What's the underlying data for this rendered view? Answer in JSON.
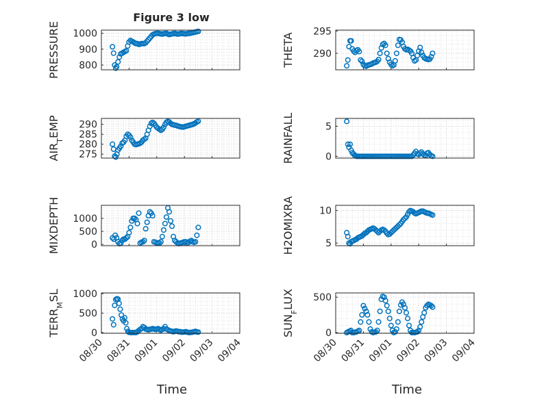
{
  "figure": {
    "title": "Figure 3 low",
    "xlabel": "Time"
  },
  "chart_data": [
    {
      "type": "scatter",
      "ylabel": "PRESSURE",
      "title": "Figure 3 low",
      "xlim": [
        0,
        5
      ],
      "ylim": [
        770,
        1020
      ],
      "yticks": [
        800,
        900,
        1000
      ],
      "xtick_labels": [
        "08/30",
        "08/31",
        "09/01",
        "09/02",
        "09/03",
        "09/04"
      ],
      "x": [
        0.4,
        0.44,
        0.48,
        0.52,
        0.55,
        0.6,
        0.65,
        0.7,
        0.75,
        0.8,
        0.85,
        0.9,
        0.95,
        1.0,
        1.05,
        1.1,
        1.15,
        1.2,
        1.25,
        1.3,
        1.35,
        1.4,
        1.45,
        1.5,
        1.55,
        1.6,
        1.65,
        1.7,
        1.75,
        1.8,
        1.85,
        1.9,
        1.95,
        2.0,
        2.05,
        2.1,
        2.15,
        2.2,
        2.25,
        2.3,
        2.35,
        2.4,
        2.45,
        2.5,
        2.55,
        2.6,
        2.65,
        2.7,
        2.75,
        2.8,
        2.85,
        2.9,
        2.95,
        3.0,
        3.05,
        3.1,
        3.15,
        3.2,
        3.25,
        3.3,
        3.35,
        3.4,
        3.45,
        3.5
      ],
      "y": [
        915,
        875,
        800,
        780,
        790,
        820,
        850,
        870,
        875,
        880,
        885,
        890,
        920,
        945,
        955,
        950,
        945,
        940,
        935,
        935,
        930,
        932,
        935,
        935,
        935,
        940,
        950,
        960,
        970,
        980,
        990,
        995,
        998,
        1000,
        1000,
        998,
        996,
        995,
        997,
        999,
        1000,
        995,
        992,
        994,
        996,
        998,
        1000,
        997,
        995,
        996,
        998,
        1000,
        998,
        997,
        996,
        998,
        1000,
        1000,
        1002,
        1004,
        1006,
        1008,
        1010,
        1012
      ]
    },
    {
      "type": "scatter",
      "ylabel": "THETA",
      "xlim": [
        0,
        5
      ],
      "ylim": [
        286.3,
        295.2
      ],
      "yticks": [
        290,
        295
      ],
      "xtick_labels": [
        "08/30",
        "08/31",
        "09/01",
        "09/02",
        "09/03",
        "09/04"
      ],
      "x": [
        0.4,
        0.44,
        0.48,
        0.52,
        0.56,
        0.6,
        0.65,
        0.7,
        0.75,
        0.8,
        0.85,
        0.9,
        0.95,
        1.0,
        1.05,
        1.1,
        1.15,
        1.2,
        1.25,
        1.3,
        1.35,
        1.4,
        1.45,
        1.5,
        1.55,
        1.6,
        1.65,
        1.7,
        1.75,
        1.8,
        1.85,
        1.9,
        1.95,
        2.0,
        2.05,
        2.1,
        2.15,
        2.2,
        2.25,
        2.3,
        2.35,
        2.4,
        2.45,
        2.5,
        2.55,
        2.6,
        2.65,
        2.7,
        2.75,
        2.8,
        2.85,
        2.9,
        2.95,
        3.0,
        3.05,
        3.1,
        3.15,
        3.2,
        3.25,
        3.3,
        3.35,
        3.4,
        3.45,
        3.5
      ],
      "y": [
        287.2,
        288.5,
        291.5,
        292.8,
        292.8,
        291,
        290.5,
        290.2,
        290.6,
        290.8,
        290.4,
        288.5,
        288.2,
        287.5,
        287.2,
        287.1,
        287.3,
        287.4,
        287.5,
        287.6,
        287.8,
        287.9,
        288,
        288.2,
        288.6,
        290,
        291.2,
        292,
        292.2,
        291.8,
        290,
        288.8,
        288,
        287.5,
        287.2,
        287.4,
        288.3,
        290,
        291.8,
        293.1,
        293,
        292.5,
        291.5,
        291,
        290.8,
        290.9,
        290.7,
        290.5,
        290,
        289,
        288.3,
        288.5,
        289.5,
        290.5,
        291.3,
        290.2,
        289.5,
        289,
        288.8,
        288.7,
        288.6,
        288.7,
        289.2,
        290
      ]
    },
    {
      "type": "scatter",
      "ylabel": "AIR_TEMP",
      "xlim": [
        0,
        5
      ],
      "ylim": [
        273,
        293
      ],
      "yticks": [
        275,
        280,
        285,
        290
      ],
      "xtick_labels": [
        "08/30",
        "08/31",
        "09/01",
        "09/02",
        "09/03",
        "09/04"
      ],
      "x": [
        0.4,
        0.44,
        0.48,
        0.52,
        0.56,
        0.6,
        0.65,
        0.7,
        0.75,
        0.8,
        0.85,
        0.9,
        0.95,
        1.0,
        1.05,
        1.1,
        1.15,
        1.2,
        1.25,
        1.3,
        1.35,
        1.4,
        1.45,
        1.5,
        1.55,
        1.6,
        1.65,
        1.7,
        1.75,
        1.8,
        1.85,
        1.9,
        1.95,
        2.0,
        2.05,
        2.1,
        2.15,
        2.2,
        2.25,
        2.3,
        2.35,
        2.4,
        2.45,
        2.5,
        2.55,
        2.6,
        2.65,
        2.7,
        2.75,
        2.8,
        2.85,
        2.9,
        2.95,
        3.0,
        3.05,
        3.1,
        3.15,
        3.2,
        3.25,
        3.3,
        3.35,
        3.4,
        3.45,
        3.5
      ],
      "y": [
        280,
        277.5,
        274,
        273.5,
        275,
        277,
        278,
        279,
        280.5,
        281,
        282,
        284,
        285,
        284.5,
        283.5,
        282,
        281,
        280,
        279.8,
        280,
        280.2,
        280.5,
        281,
        282,
        282.5,
        283,
        285,
        287,
        289,
        290.5,
        291,
        290.5,
        289.5,
        288.5,
        288,
        287.5,
        287,
        287.5,
        288.5,
        290,
        291,
        291.5,
        291.2,
        290.5,
        290,
        289.8,
        289.6,
        289.5,
        289.2,
        289,
        288.8,
        288.7,
        288.6,
        288.8,
        289,
        289.2,
        289.4,
        289.6,
        289.8,
        290,
        290.3,
        290.7,
        291.2,
        291.6
      ]
    },
    {
      "type": "scatter",
      "ylabel": "RAINFALL",
      "xlim": [
        0,
        5
      ],
      "ylim": [
        -0.3,
        6.3
      ],
      "yticks": [
        0,
        5
      ],
      "xtick_labels": [
        "08/30",
        "08/31",
        "09/01",
        "09/02",
        "09/03",
        "09/04"
      ],
      "x": [
        0.4,
        0.44,
        0.48,
        0.52,
        0.56,
        0.6,
        0.64,
        0.68,
        0.72,
        0.76,
        0.8,
        0.85,
        0.9,
        0.95,
        1.0,
        1.05,
        1.1,
        1.15,
        1.2,
        1.25,
        1.3,
        1.35,
        1.4,
        1.45,
        1.5,
        1.55,
        1.6,
        1.65,
        1.7,
        1.75,
        1.8,
        1.85,
        1.9,
        1.95,
        2.0,
        2.05,
        2.1,
        2.15,
        2.2,
        2.25,
        2.3,
        2.35,
        2.4,
        2.45,
        2.5,
        2.55,
        2.6,
        2.65,
        2.7,
        2.75,
        2.8,
        2.85,
        2.9,
        2.95,
        3.0,
        3.05,
        3.1,
        3.15,
        3.2,
        3.25,
        3.3,
        3.35,
        3.4,
        3.45,
        3.5
      ],
      "y": [
        5.8,
        2,
        1.5,
        2,
        1,
        0.6,
        0.4,
        0.2,
        0.1,
        0,
        0,
        0,
        0,
        0,
        0,
        0,
        0,
        0,
        0,
        0,
        0,
        0,
        0,
        0,
        0,
        0,
        0,
        0,
        0,
        0,
        0,
        0,
        0,
        0,
        0,
        0,
        0,
        0,
        0,
        0,
        0,
        0,
        0,
        0,
        0,
        0,
        0,
        0,
        0,
        0,
        0.2,
        0.5,
        0.8,
        0.4,
        0.3,
        0.5,
        0.7,
        0.4,
        0.2,
        0.1,
        0.5,
        0.6,
        0.3,
        0.1,
        0
      ]
    },
    {
      "type": "scatter",
      "ylabel": "MIXDEPTH",
      "xlim": [
        0,
        5
      ],
      "ylim": [
        -50,
        1500
      ],
      "yticks": [
        0,
        500,
        1000
      ],
      "xtick_labels": [
        "08/30",
        "08/31",
        "09/01",
        "09/02",
        "09/03",
        "09/04"
      ],
      "x": [
        0.4,
        0.45,
        0.5,
        0.55,
        0.6,
        0.65,
        0.7,
        0.75,
        0.8,
        0.85,
        0.9,
        0.95,
        1.0,
        1.05,
        1.1,
        1.15,
        1.2,
        1.25,
        1.3,
        1.35,
        1.4,
        1.45,
        1.5,
        1.55,
        1.6,
        1.65,
        1.7,
        1.75,
        1.8,
        1.85,
        1.9,
        1.95,
        2.0,
        2.05,
        2.1,
        2.15,
        2.2,
        2.25,
        2.3,
        2.35,
        2.4,
        2.45,
        2.5,
        2.55,
        2.6,
        2.65,
        2.7,
        2.75,
        2.8,
        2.85,
        2.9,
        2.95,
        3.0,
        3.05,
        3.1,
        3.15,
        3.2,
        3.25,
        3.3,
        3.35,
        3.4,
        3.45,
        3.5
      ],
      "y": [
        250,
        200,
        350,
        250,
        100,
        30,
        50,
        150,
        200,
        200,
        250,
        300,
        450,
        650,
        900,
        1000,
        1000,
        950,
        800,
        1200,
        50,
        80,
        100,
        150,
        600,
        850,
        1100,
        1250,
        1200,
        1100,
        100,
        80,
        50,
        60,
        50,
        100,
        300,
        550,
        800,
        1050,
        1400,
        1250,
        900,
        700,
        300,
        150,
        100,
        50,
        30,
        50,
        60,
        80,
        100,
        100,
        50,
        80,
        120,
        150,
        100,
        80,
        100,
        350,
        650
      ]
    },
    {
      "type": "scatter",
      "ylabel": "H2OMIXRA",
      "xlim": [
        0,
        5
      ],
      "ylim": [
        4.6,
        10.8
      ],
      "yticks": [
        5,
        10
      ],
      "xtick_labels": [
        "08/30",
        "08/31",
        "09/01",
        "09/02",
        "09/03",
        "09/04"
      ],
      "x": [
        0.4,
        0.44,
        0.48,
        0.52,
        0.56,
        0.6,
        0.65,
        0.7,
        0.75,
        0.8,
        0.85,
        0.9,
        0.95,
        1.0,
        1.05,
        1.1,
        1.15,
        1.2,
        1.25,
        1.3,
        1.35,
        1.4,
        1.45,
        1.5,
        1.55,
        1.6,
        1.65,
        1.7,
        1.75,
        1.8,
        1.85,
        1.9,
        1.95,
        2.0,
        2.05,
        2.1,
        2.15,
        2.2,
        2.25,
        2.3,
        2.35,
        2.4,
        2.45,
        2.5,
        2.55,
        2.6,
        2.65,
        2.7,
        2.75,
        2.8,
        2.85,
        2.9,
        2.95,
        3.0,
        3.05,
        3.1,
        3.15,
        3.2,
        3.25,
        3.3,
        3.35,
        3.4,
        3.45,
        3.5
      ],
      "y": [
        6.6,
        6,
        5,
        4.9,
        5.2,
        5.3,
        5.4,
        5.5,
        5.6,
        5.8,
        5.9,
        6,
        6.1,
        6.3,
        6.5,
        6.6,
        6.8,
        7,
        7.1,
        7.2,
        7.3,
        7.2,
        7,
        6.8,
        6.6,
        6.8,
        7,
        7.1,
        7,
        6.8,
        6.5,
        6.3,
        6.4,
        6.6,
        6.8,
        7,
        7.2,
        7.4,
        7.6,
        7.8,
        8,
        8.3,
        8.6,
        8.8,
        9,
        9.4,
        9.8,
        10,
        9.9,
        9.8,
        9.6,
        9.5,
        9.6,
        9.7,
        9.8,
        9.9,
        9.9,
        9.8,
        9.7,
        9.6,
        9.6,
        9.5,
        9.4,
        9.3
      ]
    },
    {
      "type": "scatter",
      "ylabel": "TERR_MSL",
      "xlim": [
        0,
        5
      ],
      "ylim": [
        -20,
        1020
      ],
      "yticks": [
        0,
        500,
        1000
      ],
      "xtick_labels": [
        "08/30",
        "08/31",
        "09/01",
        "09/02",
        "09/03",
        "09/04"
      ],
      "x": [
        0.4,
        0.44,
        0.48,
        0.52,
        0.56,
        0.6,
        0.64,
        0.68,
        0.72,
        0.76,
        0.8,
        0.84,
        0.88,
        0.92,
        0.96,
        1.0,
        1.05,
        1.1,
        1.15,
        1.2,
        1.25,
        1.3,
        1.35,
        1.4,
        1.45,
        1.5,
        1.55,
        1.6,
        1.65,
        1.7,
        1.75,
        1.8,
        1.85,
        1.9,
        1.95,
        2.0,
        2.05,
        2.1,
        2.15,
        2.2,
        2.25,
        2.3,
        2.35,
        2.4,
        2.45,
        2.5,
        2.55,
        2.6,
        2.65,
        2.7,
        2.75,
        2.8,
        2.85,
        2.9,
        2.95,
        3.0,
        3.05,
        3.1,
        3.15,
        3.2,
        3.25,
        3.3,
        3.35,
        3.4,
        3.45,
        3.5
      ],
      "y": [
        350,
        200,
        700,
        850,
        870,
        860,
        750,
        600,
        450,
        350,
        300,
        380,
        250,
        100,
        30,
        5,
        0,
        0,
        0,
        0,
        0,
        20,
        50,
        80,
        100,
        150,
        130,
        90,
        80,
        70,
        80,
        90,
        100,
        90,
        80,
        90,
        100,
        80,
        60,
        80,
        100,
        150,
        90,
        70,
        50,
        40,
        30,
        20,
        30,
        40,
        30,
        20,
        20,
        10,
        10,
        15,
        20,
        10,
        0,
        0,
        5,
        10,
        20,
        30,
        15,
        10
      ]
    },
    {
      "type": "scatter",
      "ylabel": "SUN_FLUX",
      "xlim": [
        0,
        5
      ],
      "ylim": [
        -10,
        560
      ],
      "yticks": [
        0,
        500
      ],
      "xtick_labels": [
        "08/30",
        "08/31",
        "09/01",
        "09/02",
        "09/03",
        "09/04"
      ],
      "x": [
        0.4,
        0.45,
        0.5,
        0.55,
        0.6,
        0.65,
        0.7,
        0.75,
        0.8,
        0.85,
        0.9,
        0.95,
        1.0,
        1.05,
        1.1,
        1.15,
        1.2,
        1.25,
        1.3,
        1.35,
        1.4,
        1.45,
        1.5,
        1.55,
        1.6,
        1.65,
        1.7,
        1.75,
        1.8,
        1.85,
        1.9,
        1.95,
        2.0,
        2.05,
        2.1,
        2.15,
        2.2,
        2.25,
        2.3,
        2.35,
        2.4,
        2.45,
        2.5,
        2.55,
        2.6,
        2.65,
        2.7,
        2.75,
        2.8,
        2.85,
        2.9,
        2.95,
        3.0,
        3.05,
        3.1,
        3.15,
        3.2,
        3.25,
        3.3,
        3.35,
        3.4,
        3.45,
        3.5
      ],
      "y": [
        0,
        10,
        20,
        30,
        0,
        0,
        5,
        10,
        20,
        30,
        150,
        250,
        380,
        340,
        300,
        250,
        150,
        50,
        10,
        0,
        5,
        10,
        30,
        150,
        300,
        470,
        510,
        500,
        450,
        380,
        300,
        200,
        100,
        30,
        0,
        10,
        50,
        150,
        300,
        390,
        430,
        400,
        350,
        280,
        200,
        100,
        30,
        0,
        0,
        0,
        5,
        10,
        30,
        80,
        150,
        220,
        280,
        350,
        380,
        400,
        390,
        380,
        360
      ]
    }
  ]
}
